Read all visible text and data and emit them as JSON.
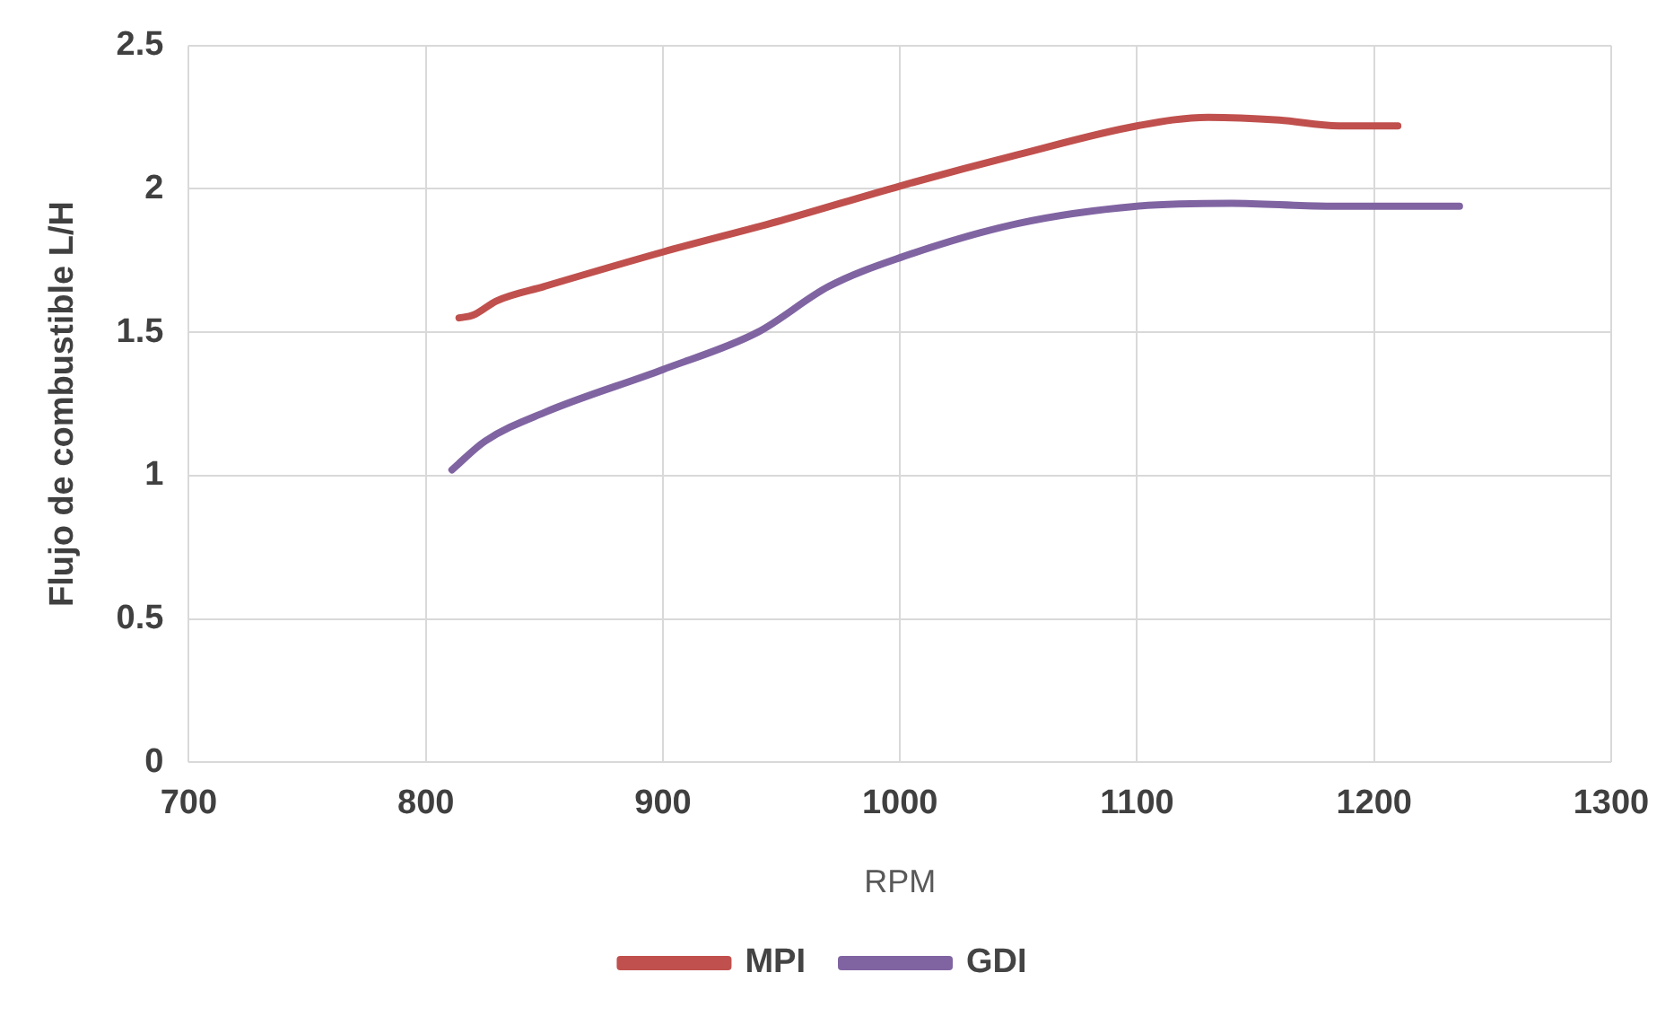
{
  "chart_data": {
    "type": "line",
    "xlabel": "RPM",
    "ylabel": "Flujo de combustible L/H",
    "xlim": [
      700,
      1300
    ],
    "xticks": [
      700,
      800,
      900,
      1000,
      1100,
      1200,
      1300
    ],
    "ylim": [
      0,
      2.5
    ],
    "yticks": [
      0,
      0.5,
      1,
      1.5,
      2,
      2.5
    ],
    "grid": true,
    "legend": "bottom",
    "marker": "none",
    "line_style": "solid",
    "series": [
      {
        "name": "MPI",
        "color": "#c0504d",
        "x": [
          814,
          820,
          830,
          850,
          900,
          950,
          1000,
          1050,
          1100,
          1130,
          1160,
          1185,
          1210
        ],
        "values": [
          1.55,
          1.56,
          1.61,
          1.66,
          1.78,
          1.89,
          2.01,
          2.12,
          2.22,
          2.25,
          2.24,
          2.22,
          2.22
        ]
      },
      {
        "name": "GDI",
        "color": "#8064a2",
        "x": [
          811,
          825,
          850,
          900,
          940,
          970,
          1000,
          1050,
          1100,
          1140,
          1180,
          1236
        ],
        "values": [
          1.02,
          1.12,
          1.22,
          1.37,
          1.5,
          1.66,
          1.76,
          1.88,
          1.94,
          1.95,
          1.94,
          1.94
        ]
      }
    ]
  }
}
